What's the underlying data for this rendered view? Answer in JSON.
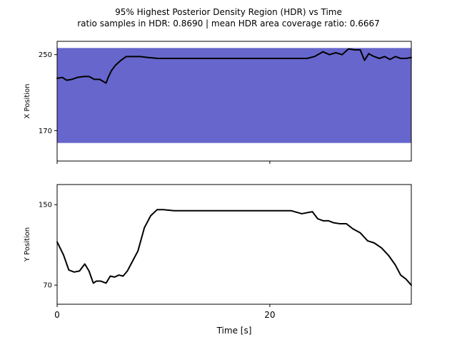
{
  "figure": {
    "title_line1": "95% Highest Posterior Density Region (HDR) vs Time",
    "title_line2": "ratio samples in HDR: 0.8690 | mean HDR area coverage ratio: 0.6667"
  },
  "colors": {
    "hdr_fill": "#6666cc",
    "line": "#000000",
    "axes": "#000000"
  },
  "chart_data": [
    {
      "type": "line",
      "ylabel": "X Position",
      "xlim": [
        0,
        33.3
      ],
      "ylim": [
        138,
        264
      ],
      "xticks": [
        0,
        20
      ],
      "xtick_labels": [
        "",
        ""
      ],
      "yticks": [
        170,
        250
      ],
      "ytick_labels": [
        "170",
        "250"
      ],
      "hdr_band": {
        "x": [
          0,
          33.3
        ],
        "y_low": 157,
        "y_high": 257
      },
      "series": [
        {
          "x": [
            0,
            0.5,
            0.9,
            1.4,
            1.9,
            2.5,
            3.0,
            3.5,
            4.0,
            4.3,
            4.6,
            4.8,
            5.1,
            5.5,
            6.0,
            6.5,
            6.8,
            7.2,
            7.8,
            8.5,
            9.5,
            10.5,
            12,
            14,
            16,
            18,
            20,
            22,
            23.5,
            24.2,
            25.0,
            25.6,
            26.2,
            26.8,
            27.4,
            28.0,
            28.5,
            28.9,
            29.3,
            29.8,
            30.3,
            30.8,
            31.3,
            31.8,
            32.3,
            32.8,
            33.3
          ],
          "y": [
            225,
            226,
            223,
            224,
            226,
            227,
            227,
            224,
            224,
            222,
            220,
            226,
            233,
            239,
            244,
            248,
            248,
            248,
            248,
            247,
            246,
            246,
            246,
            246,
            246,
            246,
            246,
            246,
            246,
            248,
            253,
            250,
            252,
            250,
            256,
            255,
            255,
            244,
            251,
            248,
            246,
            248,
            245,
            248,
            246,
            246,
            247
          ]
        }
      ]
    },
    {
      "type": "line",
      "ylabel": "Y Position",
      "xlabel": "Time [s]",
      "xlim": [
        0,
        33.3
      ],
      "ylim": [
        51,
        170
      ],
      "xticks": [
        0,
        20
      ],
      "xtick_labels": [
        "0",
        "20"
      ],
      "yticks": [
        70,
        150
      ],
      "ytick_labels": [
        "70",
        "150"
      ],
      "series": [
        {
          "x": [
            0,
            0.6,
            1.1,
            1.6,
            2.1,
            2.6,
            3.0,
            3.4,
            3.7,
            4.1,
            4.6,
            5.0,
            5.4,
            5.8,
            6.2,
            6.6,
            7.0,
            7.6,
            8.2,
            8.8,
            9.4,
            10.0,
            11,
            12,
            14,
            16,
            18,
            20,
            22,
            23.0,
            24.0,
            24.5,
            25.0,
            25.5,
            26.0,
            26.6,
            27.2,
            27.8,
            28.5,
            29.2,
            29.8,
            30.5,
            31.2,
            31.8,
            32.3,
            32.8,
            33.3
          ],
          "y": [
            113,
            100,
            85,
            83,
            84,
            91,
            84,
            72,
            74,
            74,
            72,
            79,
            78,
            80,
            79,
            84,
            92,
            104,
            127,
            139,
            145,
            145,
            144,
            144,
            144,
            144,
            144,
            144,
            144,
            141,
            143,
            136,
            134,
            134,
            132,
            131,
            131,
            126,
            122,
            114,
            112,
            107,
            99,
            90,
            80,
            76,
            70
          ]
        }
      ]
    }
  ]
}
